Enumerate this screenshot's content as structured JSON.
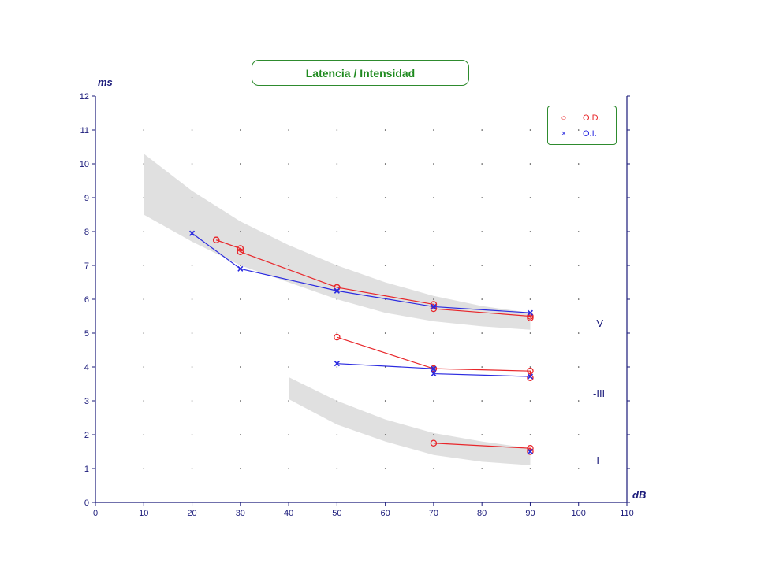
{
  "chart_data": {
    "type": "line",
    "title": "Latencia / Intensidad",
    "xlabel": "dB",
    "ylabel": "ms",
    "xlim": [
      0,
      110
    ],
    "ylim": [
      0,
      12
    ],
    "xticks": [
      0,
      10,
      20,
      30,
      40,
      50,
      60,
      70,
      80,
      90,
      100,
      110
    ],
    "yticks": [
      0,
      1,
      2,
      3,
      4,
      5,
      6,
      7,
      8,
      9,
      10,
      11,
      12
    ],
    "grid": "dotted",
    "legend_position": "top-right",
    "legend": [
      {
        "name": "O.D.",
        "marker": "circle",
        "color": "#e8262a"
      },
      {
        "name": "O.I.",
        "marker": "x",
        "color": "#2b2be0"
      }
    ],
    "wave_labels": [
      {
        "text": "-V",
        "y": 5.0
      },
      {
        "text": "-III",
        "y": 3.0
      },
      {
        "text": "-I",
        "y": 1.0
      }
    ],
    "normal_bands": [
      {
        "x": [
          10,
          20,
          30,
          40,
          50,
          60,
          70,
          80,
          90
        ],
        "upper": [
          10.3,
          9.2,
          8.3,
          7.6,
          7.0,
          6.5,
          6.1,
          5.8,
          5.6
        ],
        "lower": [
          8.5,
          7.7,
          7.0,
          6.5,
          6.0,
          5.6,
          5.35,
          5.2,
          5.1
        ]
      },
      {
        "x": [
          40,
          50,
          60,
          70,
          80,
          90
        ],
        "upper": [
          3.7,
          3.0,
          2.45,
          2.05,
          1.8,
          1.6
        ],
        "lower": [
          3.05,
          2.3,
          1.8,
          1.4,
          1.2,
          1.1
        ]
      }
    ],
    "series": [
      {
        "name": "O.D.",
        "wave": "V",
        "color": "#e8262a",
        "marker": "circle",
        "x": [
          25,
          25,
          30,
          30,
          50,
          50,
          70,
          70,
          90,
          90
        ],
        "y": [
          7.75,
          7.75,
          7.5,
          7.4,
          6.35,
          6.35,
          5.85,
          5.72,
          5.5,
          5.45
        ]
      },
      {
        "name": "O.I.",
        "wave": "V",
        "color": "#2b2be0",
        "marker": "x",
        "x": [
          20,
          30,
          50,
          70,
          90
        ],
        "y": [
          7.95,
          6.9,
          6.25,
          5.78,
          5.6
        ]
      },
      {
        "name": "O.D.",
        "wave": "III",
        "color": "#e8262a",
        "marker": "circle",
        "x": [
          50,
          70,
          70,
          90,
          90
        ],
        "y": [
          4.88,
          3.95,
          3.95,
          3.88,
          3.68
        ]
      },
      {
        "name": "O.I.",
        "wave": "III",
        "color": "#2b2be0",
        "marker": "x",
        "x": [
          50,
          70,
          70,
          90
        ],
        "y": [
          4.1,
          3.95,
          3.8,
          3.72
        ]
      },
      {
        "name": "O.D.",
        "wave": "I",
        "color": "#e8262a",
        "marker": "circle",
        "x": [
          70,
          90,
          90
        ],
        "y": [
          1.75,
          1.6,
          1.5
        ]
      },
      {
        "name": "O.I.",
        "wave": "I",
        "color": "#2b2be0",
        "marker": "x",
        "x": [
          90
        ],
        "y": [
          1.5
        ]
      }
    ]
  }
}
